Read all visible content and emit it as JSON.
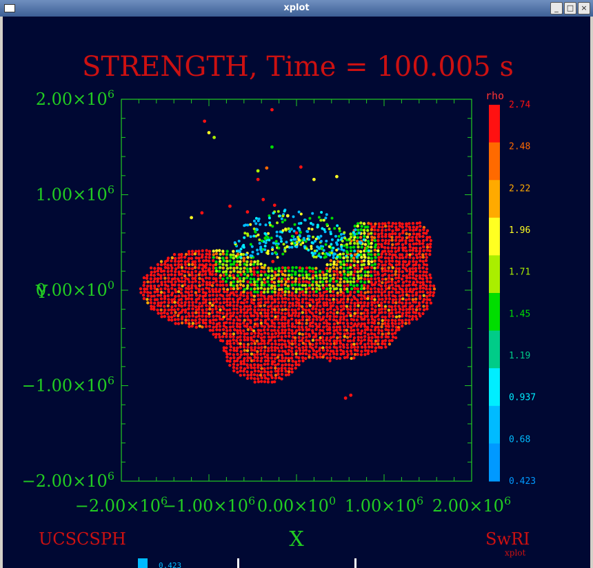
{
  "window": {
    "title": "xplot",
    "buttons": {
      "minimize": "_",
      "maximize": "□",
      "close": "×"
    }
  },
  "labels": {
    "left_credit": "UCSCSPH",
    "right_credit": "SwRI",
    "right_credit_sub": "xplot",
    "bottom_fragment": "0.423"
  },
  "colors": {
    "background": "#000833",
    "axis": "#22cc22",
    "title": "#cc1111"
  },
  "chart_data": {
    "type": "scatter",
    "title": "STRENGTH, Time = 100.005 s",
    "xlabel": "X",
    "ylabel": "Y",
    "xlim": [
      -2000000,
      2000000
    ],
    "ylim": [
      -2000000,
      2000000
    ],
    "x_ticks": [
      {
        "value": -2000000,
        "label": "−2.00×10",
        "exp": "6"
      },
      {
        "value": -1000000,
        "label": "−1.00×10",
        "exp": "6"
      },
      {
        "value": 0,
        "label": "0.00×10",
        "exp": "0"
      },
      {
        "value": 1000000,
        "label": "1.00×10",
        "exp": "6"
      },
      {
        "value": 2000000,
        "label": "2.00×10",
        "exp": "6"
      }
    ],
    "y_ticks": [
      {
        "value": 2000000,
        "label": "2.00×10",
        "exp": "6"
      },
      {
        "value": 1000000,
        "label": "1.00×10",
        "exp": "6"
      },
      {
        "value": 0,
        "label": "0.00×10",
        "exp": "0"
      },
      {
        "value": -1000000,
        "label": "−1.00×10",
        "exp": "6"
      },
      {
        "value": -2000000,
        "label": "−2.00×10",
        "exp": "6"
      }
    ],
    "colorbar": {
      "label": "rho",
      "min": 0.423,
      "max": 2.74,
      "ticks": [
        "2.74",
        "2.48",
        "2.22",
        "1.96",
        "1.71",
        "1.45",
        "1.19",
        "0.937",
        "0.68",
        "0.423"
      ],
      "colors": [
        "#ff1111",
        "#ff6a00",
        "#ffaa00",
        "#ffff22",
        "#aaee00",
        "#00dd00",
        "#00cc88",
        "#00eeff",
        "#00bbff",
        "#0099ff"
      ]
    },
    "grid": false,
    "points": [
      [
        -1050000,
        1770000,
        2.74
      ],
      [
        -1000000,
        1650000,
        1.96
      ],
      [
        -940000,
        1600000,
        1.71
      ],
      [
        -280000,
        1890000,
        2.74
      ],
      [
        -280000,
        1500000,
        1.45
      ],
      [
        -340000,
        1280000,
        2.48
      ],
      [
        -440000,
        1250000,
        1.71
      ],
      [
        -440000,
        1160000,
        2.74
      ],
      [
        50000,
        1290000,
        2.74
      ],
      [
        200000,
        1160000,
        1.96
      ],
      [
        460000,
        1190000,
        1.96
      ],
      [
        -1200000,
        760000,
        1.96
      ],
      [
        -1080000,
        810000,
        2.74
      ],
      [
        -760000,
        880000,
        2.74
      ],
      [
        -560000,
        820000,
        2.74
      ],
      [
        -380000,
        950000,
        2.74
      ],
      [
        -250000,
        890000,
        2.74
      ],
      [
        -100000,
        780000,
        1.96
      ],
      [
        0,
        600000,
        2.74
      ],
      [
        -270000,
        300000,
        2.74
      ],
      [
        560000,
        -1130000,
        2.74
      ],
      [
        620000,
        -1100000,
        2.74
      ],
      [
        -1050000,
        250000,
        2.74
      ],
      [
        -1000000,
        210000,
        2.74
      ]
    ]
  }
}
